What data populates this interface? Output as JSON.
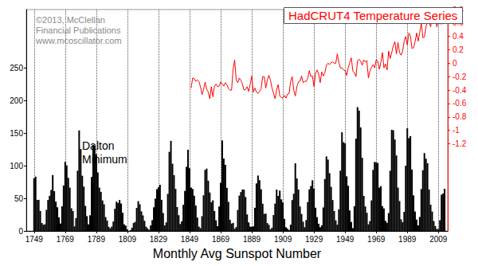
{
  "chart_data": {
    "type": "bar",
    "title": "HadCRUT4 Temperature Series",
    "x_label": "Monthly Avg Sunspot Number",
    "annotations": [
      {
        "text": "©2013, McClellan\nFinancial Publications\nwww.mcoscillator.com"
      },
      {
        "text": "Dalton\nMinimum"
      }
    ],
    "grid": "x",
    "xlim": [
      1744,
      2015
    ],
    "xticks": [
      1749,
      1769,
      1789,
      1809,
      1829,
      1849,
      1869,
      1889,
      1909,
      1929,
      1949,
      1969,
      1989,
      2009
    ],
    "ylim": [
      0,
      340
    ],
    "yticks": [
      0,
      50,
      100,
      150,
      200,
      250
    ],
    "y2lim": [
      -2.5,
      0.8
    ],
    "y2ticks": [
      0.8,
      0.6,
      0.4,
      0.2,
      0,
      -0.2,
      -0.4,
      -0.6,
      -0.8,
      -1,
      -1.2
    ],
    "series": [
      {
        "type": "bar",
        "color": "#000000",
        "x": [
          1749,
          1750,
          1751,
          1752,
          1753,
          1754,
          1755,
          1756,
          1757,
          1758,
          1759,
          1760,
          1761,
          1762,
          1763,
          1764,
          1765,
          1766,
          1767,
          1768,
          1769,
          1770,
          1771,
          1772,
          1773,
          1774,
          1775,
          1776,
          1777,
          1778,
          1779,
          1780,
          1781,
          1782,
          1783,
          1784,
          1785,
          1786,
          1787,
          1788,
          1789,
          1790,
          1791,
          1792,
          1793,
          1794,
          1795,
          1796,
          1797,
          1798,
          1799,
          1800,
          1801,
          1802,
          1803,
          1804,
          1805,
          1806,
          1807,
          1808,
          1809,
          1810,
          1811,
          1812,
          1813,
          1814,
          1815,
          1816,
          1817,
          1818,
          1819,
          1820,
          1821,
          1822,
          1823,
          1824,
          1825,
          1826,
          1827,
          1828,
          1829,
          1830,
          1831,
          1832,
          1833,
          1834,
          1835,
          1836,
          1837,
          1838,
          1839,
          1840,
          1841,
          1842,
          1843,
          1844,
          1845,
          1846,
          1847,
          1848,
          1849,
          1850,
          1851,
          1852,
          1853,
          1854,
          1855,
          1856,
          1857,
          1858,
          1859,
          1860,
          1861,
          1862,
          1863,
          1864,
          1865,
          1866,
          1867,
          1868,
          1869,
          1870,
          1871,
          1872,
          1873,
          1874,
          1875,
          1876,
          1877,
          1878,
          1879,
          1880,
          1881,
          1882,
          1883,
          1884,
          1885,
          1886,
          1887,
          1888,
          1889,
          1890,
          1891,
          1892,
          1893,
          1894,
          1895,
          1896,
          1897,
          1898,
          1899,
          1900,
          1901,
          1902,
          1903,
          1904,
          1905,
          1906,
          1907,
          1908,
          1909,
          1910,
          1911,
          1912,
          1913,
          1914,
          1915,
          1916,
          1917,
          1918,
          1919,
          1920,
          1921,
          1922,
          1923,
          1924,
          1925,
          1926,
          1927,
          1928,
          1929,
          1930,
          1931,
          1932,
          1933,
          1934,
          1935,
          1936,
          1937,
          1938,
          1939,
          1940,
          1941,
          1942,
          1943,
          1944,
          1945,
          1946,
          1947,
          1948,
          1949,
          1950,
          1951,
          1952,
          1953,
          1954,
          1955,
          1956,
          1957,
          1958,
          1959,
          1960,
          1961,
          1962,
          1963,
          1964,
          1965,
          1966,
          1967,
          1968,
          1969,
          1970,
          1971,
          1972,
          1973,
          1974,
          1975,
          1976,
          1977,
          1978,
          1979,
          1980,
          1981,
          1982,
          1983,
          1984,
          1985,
          1986,
          1987,
          1988,
          1989,
          1990,
          1991,
          1992,
          1993,
          1994,
          1995,
          1996,
          1997,
          1998,
          1999,
          2000,
          2001,
          2002,
          2003,
          2004,
          2005,
          2006,
          2007,
          2008,
          2009,
          2010,
          2011,
          2012,
          2013
        ],
        "values": [
          80.9,
          83.4,
          47.7,
          47.8,
          30.7,
          12.2,
          9.6,
          10.2,
          32.4,
          47.6,
          54.0,
          62.9,
          85.9,
          61.2,
          45.1,
          36.4,
          20.9,
          11.4,
          37.8,
          69.8,
          106.1,
          100.8,
          81.6,
          66.5,
          34.8,
          30.6,
          7.0,
          19.8,
          92.5,
          154.4,
          125.9,
          84.8,
          68.1,
          38.5,
          22.8,
          10.2,
          24.1,
          82.9,
          132.0,
          130.9,
          118.1,
          89.9,
          66.6,
          60.0,
          46.9,
          41.0,
          21.3,
          16.0,
          6.4,
          4.1,
          6.8,
          14.5,
          34.0,
          45.0,
          43.1,
          47.5,
          42.2,
          28.1,
          10.1,
          8.1,
          2.5,
          0.0,
          1.4,
          5.0,
          12.2,
          13.9,
          35.4,
          45.8,
          41.1,
          30.1,
          23.9,
          15.6,
          6.6,
          4.0,
          1.8,
          8.5,
          16.6,
          36.3,
          49.6,
          64.2,
          67.0,
          70.9,
          47.8,
          27.5,
          8.5,
          13.2,
          56.9,
          121.5,
          138.3,
          103.2,
          85.7,
          64.6,
          36.7,
          24.2,
          10.7,
          15.0,
          40.1,
          61.5,
          98.5,
          124.7,
          96.3,
          66.6,
          64.5,
          54.1,
          39.0,
          20.6,
          6.7,
          4.3,
          22.7,
          54.8,
          93.8,
          95.8,
          77.2,
          59.1,
          44.0,
          47.0,
          30.5,
          16.3,
          7.3,
          37.6,
          74.0,
          139.0,
          111.2,
          101.6,
          66.2,
          44.7,
          17.0,
          11.3,
          12.4,
          3.4,
          6.0,
          32.3,
          54.3,
          59.7,
          63.7,
          63.5,
          52.2,
          25.4,
          13.1,
          6.8,
          6.3,
          7.1,
          35.6,
          73.0,
          85.1,
          78.0,
          64.0,
          41.8,
          26.2,
          26.7,
          12.1,
          9.5,
          2.7,
          5.0,
          24.4,
          42.0,
          63.5,
          53.8,
          62.0,
          48.5,
          43.9,
          18.6,
          5.7,
          3.6,
          1.4,
          9.6,
          47.4,
          57.1,
          103.9,
          80.6,
          63.6,
          37.6,
          26.1,
          14.2,
          5.8,
          16.7,
          44.3,
          63.9,
          69.0,
          77.8,
          64.9,
          35.7,
          21.2,
          11.1,
          5.7,
          8.7,
          36.1,
          79.7,
          114.4,
          109.6,
          88.8,
          67.8,
          47.5,
          30.6,
          16.3,
          9.6,
          33.2,
          92.6,
          151.6,
          136.3,
          134.7,
          83.9,
          69.4,
          31.5,
          13.9,
          4.4,
          38.0,
          141.7,
          190.2,
          184.8,
          159.0,
          112.3,
          53.9,
          37.6,
          27.9,
          10.2,
          15.1,
          47.0,
          93.8,
          105.9,
          105.5,
          104.5,
          66.6,
          68.9,
          38.0,
          34.5,
          15.5,
          12.6,
          27.5,
          92.5,
          155.4,
          154.6,
          140.4,
          115.9,
          66.6,
          45.9,
          17.9,
          13.4,
          29.4,
          100.2,
          157.6,
          142.6,
          145.7,
          94.3,
          54.6,
          29.9,
          17.5,
          8.6,
          21.5,
          64.3,
          93.3,
          119.6,
          111.0,
          104.0,
          63.7,
          40.4,
          29.8,
          15.2,
          7.5,
          2.9,
          3.1,
          16.5,
          55.7,
          57.6,
          64.7
        ]
      },
      {
        "type": "line",
        "color": "#ff0000",
        "axis": "y2",
        "marker": "none",
        "x": [
          1850,
          1851,
          1852,
          1853,
          1854,
          1855,
          1856,
          1857,
          1858,
          1859,
          1860,
          1861,
          1862,
          1863,
          1864,
          1865,
          1866,
          1867,
          1868,
          1869,
          1870,
          1871,
          1872,
          1873,
          1874,
          1875,
          1876,
          1877,
          1878,
          1879,
          1880,
          1881,
          1882,
          1883,
          1884,
          1885,
          1886,
          1887,
          1888,
          1889,
          1890,
          1891,
          1892,
          1893,
          1894,
          1895,
          1896,
          1897,
          1898,
          1899,
          1900,
          1901,
          1902,
          1903,
          1904,
          1905,
          1906,
          1907,
          1908,
          1909,
          1910,
          1911,
          1912,
          1913,
          1914,
          1915,
          1916,
          1917,
          1918,
          1919,
          1920,
          1921,
          1922,
          1923,
          1924,
          1925,
          1926,
          1927,
          1928,
          1929,
          1930,
          1931,
          1932,
          1933,
          1934,
          1935,
          1936,
          1937,
          1938,
          1939,
          1940,
          1941,
          1942,
          1943,
          1944,
          1945,
          1946,
          1947,
          1948,
          1949,
          1950,
          1951,
          1952,
          1953,
          1954,
          1955,
          1956,
          1957,
          1958,
          1959,
          1960,
          1961,
          1962,
          1963,
          1964,
          1965,
          1966,
          1967,
          1968,
          1969,
          1970,
          1971,
          1972,
          1973,
          1974,
          1975,
          1976,
          1977,
          1978,
          1979,
          1980,
          1981,
          1982,
          1983,
          1984,
          1985,
          1986,
          1987,
          1988,
          1989,
          1990,
          1991,
          1992,
          1993,
          1994,
          1995,
          1996,
          1997,
          1998,
          1999,
          2000,
          2001,
          2002,
          2003,
          2004,
          2005,
          2006,
          2007,
          2008,
          2009,
          2010,
          2011,
          2012,
          2013
        ],
        "values": [
          -0.37,
          -0.22,
          -0.23,
          -0.27,
          -0.25,
          -0.27,
          -0.35,
          -0.47,
          -0.39,
          -0.28,
          -0.39,
          -0.43,
          -0.53,
          -0.35,
          -0.5,
          -0.34,
          -0.31,
          -0.35,
          -0.34,
          -0.28,
          -0.31,
          -0.34,
          -0.29,
          -0.32,
          -0.38,
          -0.4,
          -0.4,
          -0.09,
          0.05,
          -0.25,
          -0.29,
          -0.22,
          -0.26,
          -0.31,
          -0.4,
          -0.39,
          -0.35,
          -0.42,
          -0.31,
          -0.19,
          -0.43,
          -0.37,
          -0.43,
          -0.45,
          -0.42,
          -0.38,
          -0.2,
          -0.2,
          -0.37,
          -0.25,
          -0.18,
          -0.25,
          -0.37,
          -0.45,
          -0.53,
          -0.39,
          -0.32,
          -0.49,
          -0.51,
          -0.52,
          -0.48,
          -0.52,
          -0.46,
          -0.45,
          -0.27,
          -0.2,
          -0.4,
          -0.49,
          -0.35,
          -0.28,
          -0.27,
          -0.19,
          -0.29,
          -0.27,
          -0.27,
          -0.22,
          -0.11,
          -0.2,
          -0.19,
          -0.35,
          -0.15,
          -0.1,
          -0.16,
          -0.29,
          -0.13,
          -0.19,
          -0.14,
          -0.03,
          0.0,
          -0.02,
          0.01,
          0.02,
          0.0,
          0.0,
          0.14,
          0.01,
          -0.07,
          -0.07,
          -0.1,
          -0.11,
          -0.18,
          -0.07,
          0.01,
          0.08,
          -0.12,
          -0.14,
          -0.2,
          0.04,
          0.06,
          0.03,
          -0.03,
          0.05,
          0.02,
          0.04,
          -0.22,
          -0.11,
          -0.06,
          -0.02,
          -0.07,
          0.05,
          0.03,
          -0.09,
          0.01,
          0.16,
          -0.07,
          -0.01,
          -0.1,
          0.18,
          0.07,
          0.16,
          0.26,
          0.32,
          0.14,
          0.31,
          0.16,
          0.12,
          0.18,
          0.33,
          0.4,
          0.27,
          0.45,
          0.41,
          0.22,
          0.23,
          0.32,
          0.45,
          0.33,
          0.46,
          0.61,
          0.38,
          0.39,
          0.54,
          0.63,
          0.62,
          0.54,
          0.68,
          0.64,
          0.66,
          0.54,
          0.64,
          0.72,
          0.58,
          0.62,
          0.62
        ]
      }
    ]
  }
}
